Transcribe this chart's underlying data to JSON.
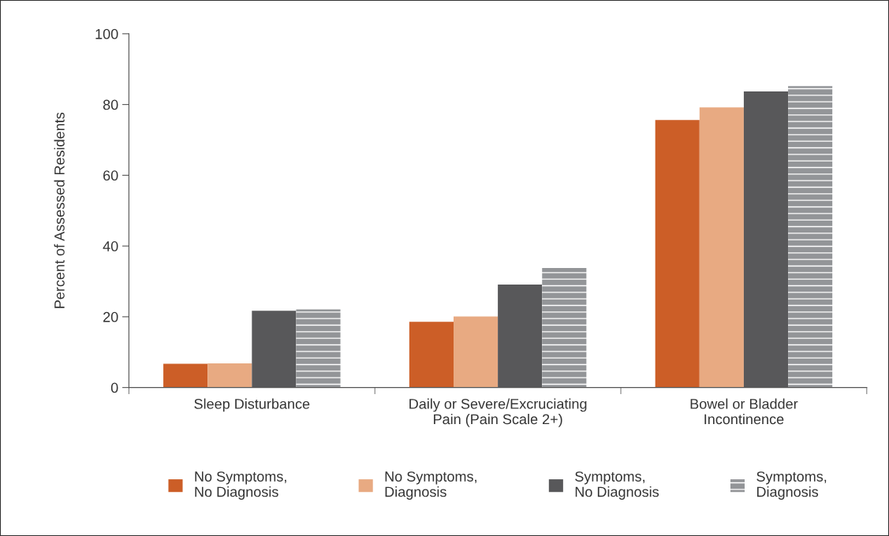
{
  "chart_data": {
    "type": "bar",
    "ylabel": "Percent of Assessed Residents",
    "categories": [
      "Sleep Disturbance",
      "Daily or Severe/Excruciating\nPain (Pain Scale 2+)",
      "Bowel or Bladder\nIncontinence"
    ],
    "series": [
      {
        "name": "No Symptoms,\nNo Diagnosis",
        "color": "#cc5e27",
        "values": [
          6.7,
          18.6,
          75.6
        ]
      },
      {
        "name": "No Symptoms,\nDiagnosis",
        "color": "#e8aa82",
        "values": [
          6.8,
          20.1,
          79.2
        ]
      },
      {
        "name": "Symptoms,\nNo Diagnosis",
        "color": "#58585a",
        "values": [
          21.7,
          29.1,
          83.7
        ]
      },
      {
        "name": "Symptoms,\nDiagnosis",
        "color": "#939598",
        "values": [
          22.1,
          33.8,
          85.2
        ]
      }
    ],
    "ylim": [
      0,
      100
    ],
    "yticks": [
      0,
      20,
      40,
      60,
      80,
      100
    ],
    "grid": false,
    "legend": "bottom"
  }
}
